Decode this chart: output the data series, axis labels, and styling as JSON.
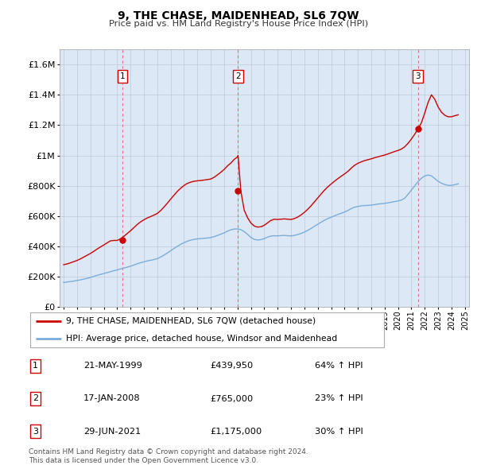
{
  "title": "9, THE CHASE, MAIDENHEAD, SL6 7QW",
  "subtitle": "Price paid vs. HM Land Registry's House Price Index (HPI)",
  "ytick_values": [
    0,
    200000,
    400000,
    600000,
    800000,
    1000000,
    1200000,
    1400000,
    1600000
  ],
  "ylim": [
    0,
    1700000
  ],
  "xlim_start": 1994.7,
  "xlim_end": 2025.3,
  "xtick_years": [
    1995,
    1996,
    1997,
    1998,
    1999,
    2000,
    2001,
    2002,
    2003,
    2004,
    2005,
    2006,
    2007,
    2008,
    2009,
    2010,
    2011,
    2012,
    2013,
    2014,
    2015,
    2016,
    2017,
    2018,
    2019,
    2020,
    2021,
    2022,
    2023,
    2024,
    2025
  ],
  "sale_dates": [
    1999.38,
    2008.04,
    2021.49
  ],
  "sale_prices": [
    439950,
    765000,
    1175000
  ],
  "sale_labels": [
    "1",
    "2",
    "3"
  ],
  "legend_red": "9, THE CHASE, MAIDENHEAD, SL6 7QW (detached house)",
  "legend_blue": "HPI: Average price, detached house, Windsor and Maidenhead",
  "table_rows": [
    [
      "1",
      "21-MAY-1999",
      "£439,950",
      "64% ↑ HPI"
    ],
    [
      "2",
      "17-JAN-2008",
      "£765,000",
      "23% ↑ HPI"
    ],
    [
      "3",
      "29-JUN-2021",
      "£1,175,000",
      "30% ↑ HPI"
    ]
  ],
  "footnote1": "Contains HM Land Registry data © Crown copyright and database right 2024.",
  "footnote2": "This data is licensed under the Open Government Licence v3.0.",
  "red_color": "#cc0000",
  "blue_color": "#7aaddc",
  "dashed_red": "#e06060",
  "bg_color": "#dce8f5",
  "grid_color": "#c0c8d8",
  "hpi_data_x": [
    1995.0,
    1995.25,
    1995.5,
    1995.75,
    1996.0,
    1996.25,
    1996.5,
    1996.75,
    1997.0,
    1997.25,
    1997.5,
    1997.75,
    1998.0,
    1998.25,
    1998.5,
    1998.75,
    1999.0,
    1999.25,
    1999.5,
    1999.75,
    2000.0,
    2000.25,
    2000.5,
    2000.75,
    2001.0,
    2001.25,
    2001.5,
    2001.75,
    2002.0,
    2002.25,
    2002.5,
    2002.75,
    2003.0,
    2003.25,
    2003.5,
    2003.75,
    2004.0,
    2004.25,
    2004.5,
    2004.75,
    2005.0,
    2005.25,
    2005.5,
    2005.75,
    2006.0,
    2006.25,
    2006.5,
    2006.75,
    2007.0,
    2007.25,
    2007.5,
    2007.75,
    2008.0,
    2008.25,
    2008.5,
    2008.75,
    2009.0,
    2009.25,
    2009.5,
    2009.75,
    2010.0,
    2010.25,
    2010.5,
    2010.75,
    2011.0,
    2011.25,
    2011.5,
    2011.75,
    2012.0,
    2012.25,
    2012.5,
    2012.75,
    2013.0,
    2013.25,
    2013.5,
    2013.75,
    2014.0,
    2014.25,
    2014.5,
    2014.75,
    2015.0,
    2015.25,
    2015.5,
    2015.75,
    2016.0,
    2016.25,
    2016.5,
    2016.75,
    2017.0,
    2017.25,
    2017.5,
    2017.75,
    2018.0,
    2018.25,
    2018.5,
    2018.75,
    2019.0,
    2019.25,
    2019.5,
    2019.75,
    2020.0,
    2020.25,
    2020.5,
    2020.75,
    2021.0,
    2021.25,
    2021.5,
    2021.75,
    2022.0,
    2022.25,
    2022.5,
    2022.75,
    2023.0,
    2023.25,
    2023.5,
    2023.75,
    2024.0,
    2024.25,
    2024.5
  ],
  "hpi_data_y": [
    163000,
    166000,
    169000,
    172000,
    176000,
    180000,
    185000,
    190000,
    196000,
    203000,
    210000,
    216000,
    222000,
    228000,
    234000,
    240000,
    246000,
    252000,
    258000,
    264000,
    270000,
    278000,
    286000,
    293000,
    299000,
    305000,
    309000,
    314000,
    320000,
    330000,
    343000,
    357000,
    372000,
    387000,
    401000,
    414000,
    425000,
    435000,
    442000,
    447000,
    450000,
    452000,
    454000,
    456000,
    459000,
    465000,
    473000,
    481000,
    490000,
    501000,
    510000,
    515000,
    516000,
    511000,
    498000,
    480000,
    460000,
    447000,
    443000,
    445000,
    452000,
    462000,
    469000,
    471000,
    470000,
    472000,
    473000,
    471000,
    470000,
    473000,
    479000,
    486000,
    495000,
    506000,
    519000,
    533000,
    547000,
    560000,
    573000,
    584000,
    593000,
    602000,
    611000,
    619000,
    627000,
    637000,
    650000,
    659000,
    664000,
    668000,
    670000,
    671000,
    673000,
    676000,
    680000,
    682000,
    684000,
    688000,
    692000,
    696000,
    700000,
    706000,
    718000,
    744000,
    772000,
    800000,
    827000,
    850000,
    865000,
    871000,
    866000,
    848000,
    830000,
    817000,
    808000,
    803000,
    803000,
    808000,
    813000
  ],
  "price_data_x": [
    1995.0,
    1995.25,
    1995.5,
    1995.75,
    1996.0,
    1996.25,
    1996.5,
    1996.75,
    1997.0,
    1997.25,
    1997.5,
    1997.75,
    1998.0,
    1998.25,
    1998.5,
    1998.75,
    1999.0,
    1999.25,
    1999.5,
    1999.75,
    2000.0,
    2000.25,
    2000.5,
    2000.75,
    2001.0,
    2001.25,
    2001.5,
    2001.75,
    2002.0,
    2002.25,
    2002.5,
    2002.75,
    2003.0,
    2003.25,
    2003.5,
    2003.75,
    2004.0,
    2004.25,
    2004.5,
    2004.75,
    2005.0,
    2005.25,
    2005.5,
    2005.75,
    2006.0,
    2006.25,
    2006.5,
    2006.75,
    2007.0,
    2007.25,
    2007.5,
    2007.75,
    2008.0,
    2008.04,
    2008.25,
    2008.5,
    2008.75,
    2009.0,
    2009.25,
    2009.5,
    2009.75,
    2010.0,
    2010.25,
    2010.5,
    2010.75,
    2011.0,
    2011.25,
    2011.5,
    2011.75,
    2012.0,
    2012.25,
    2012.5,
    2012.75,
    2013.0,
    2013.25,
    2013.5,
    2013.75,
    2014.0,
    2014.25,
    2014.5,
    2014.75,
    2015.0,
    2015.25,
    2015.5,
    2015.75,
    2016.0,
    2016.25,
    2016.5,
    2016.75,
    2017.0,
    2017.25,
    2017.5,
    2017.75,
    2018.0,
    2018.25,
    2018.5,
    2018.75,
    2019.0,
    2019.25,
    2019.5,
    2019.75,
    2020.0,
    2020.25,
    2020.5,
    2020.75,
    2021.0,
    2021.25,
    2021.49,
    2021.75,
    2022.0,
    2022.25,
    2022.5,
    2022.75,
    2023.0,
    2023.25,
    2023.5,
    2023.75,
    2024.0,
    2024.25,
    2024.5
  ],
  "price_data_y": [
    280000,
    285000,
    292000,
    300000,
    308000,
    318000,
    330000,
    342000,
    354000,
    368000,
    383000,
    397000,
    410000,
    424000,
    437000,
    439950,
    439950,
    450000,
    467000,
    485000,
    504000,
    524000,
    545000,
    562000,
    576000,
    588000,
    597000,
    607000,
    618000,
    636000,
    660000,
    685000,
    712000,
    738000,
    763000,
    784000,
    802000,
    816000,
    824000,
    830000,
    833000,
    835000,
    838000,
    841000,
    845000,
    856000,
    872000,
    889000,
    908000,
    931000,
    950000,
    974000,
    990000,
    1000000,
    765000,
    640000,
    590000,
    555000,
    535000,
    528000,
    530000,
    540000,
    556000,
    572000,
    580000,
    578000,
    580000,
    582000,
    580000,
    578000,
    584000,
    594000,
    608000,
    625000,
    645000,
    668000,
    694000,
    720000,
    746000,
    771000,
    793000,
    812000,
    830000,
    847000,
    863000,
    878000,
    895000,
    916000,
    935000,
    948000,
    958000,
    966000,
    972000,
    978000,
    985000,
    991000,
    997000,
    1003000,
    1010000,
    1018000,
    1026000,
    1033000,
    1042000,
    1057000,
    1080000,
    1108000,
    1140000,
    1175000,
    1215000,
    1280000,
    1350000,
    1400000,
    1370000,
    1320000,
    1285000,
    1265000,
    1255000,
    1255000,
    1262000,
    1268000
  ]
}
